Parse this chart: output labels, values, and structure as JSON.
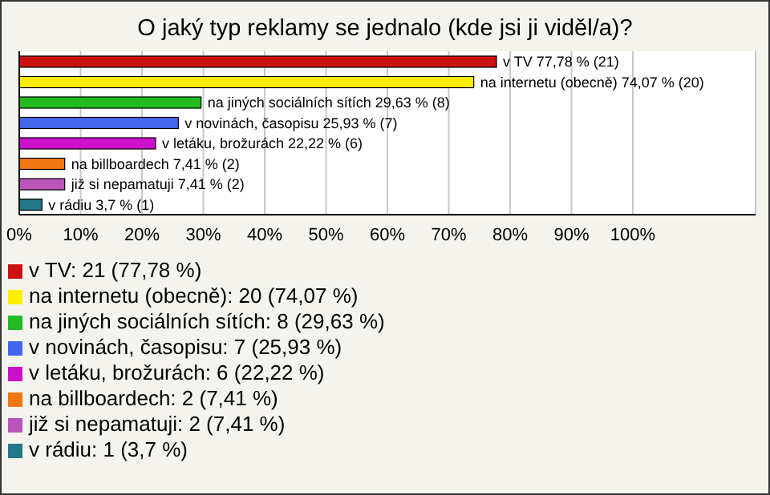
{
  "chart_data": {
    "type": "bar",
    "orientation": "horizontal",
    "stacked": true,
    "title": "O jaký typ reklamy se jednalo (kde jsi ji viděl/a)?",
    "categories": [
      null,
      null,
      null,
      null,
      null,
      null,
      null,
      null
    ],
    "series": [
      {
        "name": "v TV: 21 (77,78 %)",
        "color": "#cc1111",
        "values": [
          77.78,
          null,
          null,
          null,
          null,
          null,
          null,
          null
        ],
        "value_labels": [
          "v TV 77,78 % (21)",
          null,
          null,
          null,
          null,
          null,
          null,
          null
        ]
      },
      {
        "name": "na internetu (obecně): 20 (74,07 %)",
        "color": "#ffee00",
        "values": [
          null,
          74.07,
          null,
          null,
          null,
          null,
          null,
          null
        ],
        "value_labels": [
          null,
          "na internetu (obecně) 74,07 % (20)",
          null,
          null,
          null,
          null,
          null,
          null
        ]
      },
      {
        "name": "na jiných sociálních sítích: 8 (29,63 %)",
        "color": "#22bb22",
        "values": [
          null,
          null,
          29.63,
          null,
          null,
          null,
          null,
          null
        ],
        "value_labels": [
          null,
          null,
          "na jiných sociálních sítích 29,63 % (8)",
          null,
          null,
          null,
          null,
          null
        ]
      },
      {
        "name": "v novinách, časopisu: 7 (25,93 %)",
        "color": "#4466ee",
        "values": [
          null,
          null,
          null,
          25.93,
          null,
          null,
          null,
          null
        ],
        "value_labels": [
          null,
          null,
          null,
          "v novinách, časopisu 25,93 % (7)",
          null,
          null,
          null,
          null
        ]
      },
      {
        "name": "v letáku, brožurách: 6 (22,22 %)",
        "color": "#cc11cc",
        "values": [
          null,
          null,
          null,
          null,
          22.22,
          null,
          null,
          null
        ],
        "value_labels": [
          null,
          null,
          null,
          null,
          "v letáku, brožurách 22,22 % (6)",
          null,
          null,
          null
        ]
      },
      {
        "name": "na billboardech: 2 (7,41 %)",
        "color": "#ee7711",
        "values": [
          null,
          null,
          null,
          null,
          null,
          7.41,
          null,
          null
        ],
        "value_labels": [
          null,
          null,
          null,
          null,
          null,
          "na billboardech 7,41 % (2)",
          null,
          null
        ]
      },
      {
        "name": "již si nepamatuji: 2 (7,41 %)",
        "color": "#bb55bb",
        "values": [
          null,
          null,
          null,
          null,
          null,
          null,
          7.41,
          null
        ],
        "value_labels": [
          null,
          null,
          null,
          null,
          null,
          null,
          "již si nepamatuji 7,41 % (2)",
          null
        ]
      },
      {
        "name": "v rádiu: 1 (3,7 %)",
        "color": "#227788",
        "values": [
          null,
          null,
          null,
          null,
          null,
          null,
          null,
          3.7
        ],
        "value_labels": [
          null,
          null,
          null,
          null,
          null,
          null,
          null,
          "v rádiu 3,7 % (1)"
        ]
      }
    ],
    "xlim": [
      0,
      120
    ],
    "xticks": [
      {
        "value": 0,
        "label": "0%"
      },
      {
        "value": 10,
        "label": "10%"
      },
      {
        "value": 20,
        "label": "20%"
      },
      {
        "value": 30,
        "label": "30%"
      },
      {
        "value": 40,
        "label": "40%"
      },
      {
        "value": 50,
        "label": "50%"
      },
      {
        "value": 60,
        "label": "60%"
      },
      {
        "value": 70,
        "label": "70%"
      },
      {
        "value": 80,
        "label": "80%"
      },
      {
        "value": 90,
        "label": "90%"
      },
      {
        "value": 100,
        "label": "100%"
      }
    ],
    "grid": "x",
    "legend": "bottom",
    "tick_labels": "x"
  }
}
